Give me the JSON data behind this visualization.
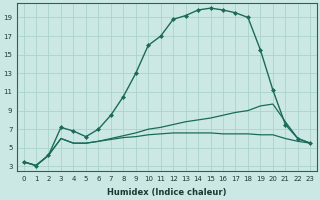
{
  "xlabel": "Humidex (Indice chaleur)",
  "bg_color": "#cce8e4",
  "grid_color": "#aad4cc",
  "line_color": "#1a6b5a",
  "xlim": [
    -0.5,
    23.5
  ],
  "ylim": [
    2.5,
    20.5
  ],
  "yticks": [
    3,
    5,
    7,
    9,
    11,
    13,
    15,
    17,
    19
  ],
  "xticks": [
    0,
    1,
    2,
    3,
    4,
    5,
    6,
    7,
    8,
    9,
    10,
    11,
    12,
    13,
    14,
    15,
    16,
    17,
    18,
    19,
    20,
    21,
    22,
    23
  ],
  "series": [
    {
      "x": [
        0,
        1,
        2,
        3,
        4,
        5,
        6,
        7,
        8,
        9,
        10,
        11,
        12,
        13,
        14,
        15,
        16,
        17,
        18,
        19,
        20,
        21,
        22,
        23
      ],
      "y": [
        3.5,
        3.1,
        4.2,
        6.0,
        5.5,
        5.5,
        5.7,
        5.9,
        6.1,
        6.2,
        6.4,
        6.5,
        6.6,
        6.6,
        6.6,
        6.6,
        6.5,
        6.5,
        6.5,
        6.4,
        6.4,
        6.0,
        5.7,
        5.5
      ],
      "marker": null,
      "linestyle": "-",
      "linewidth": 0.9
    },
    {
      "x": [
        0,
        1,
        2,
        3,
        4,
        5,
        6,
        7,
        8,
        9,
        10,
        11,
        12,
        13,
        14,
        15,
        16,
        17,
        18,
        19,
        20,
        21,
        22,
        23
      ],
      "y": [
        3.5,
        3.1,
        4.2,
        6.0,
        5.5,
        5.5,
        5.7,
        6.0,
        6.3,
        6.6,
        7.0,
        7.2,
        7.5,
        7.8,
        8.0,
        8.2,
        8.5,
        8.8,
        9.0,
        9.5,
        9.7,
        7.8,
        6.0,
        5.5
      ],
      "marker": null,
      "linestyle": "-",
      "linewidth": 0.9
    },
    {
      "x": [
        0,
        1,
        2,
        3,
        4,
        5,
        6,
        7,
        8,
        9,
        10,
        11,
        12,
        13,
        14,
        15,
        16,
        17,
        18,
        19,
        20,
        21,
        22,
        23
      ],
      "y": [
        3.5,
        3.1,
        4.2,
        7.2,
        6.8,
        6.2,
        7.0,
        8.5,
        10.5,
        13.0,
        16.0,
        17.0,
        18.8,
        19.2,
        19.8,
        20.0,
        19.8,
        19.5,
        19.0,
        15.5,
        11.2,
        7.5,
        6.0,
        5.5
      ],
      "marker": "D",
      "linestyle": "-",
      "linewidth": 1.0
    }
  ]
}
